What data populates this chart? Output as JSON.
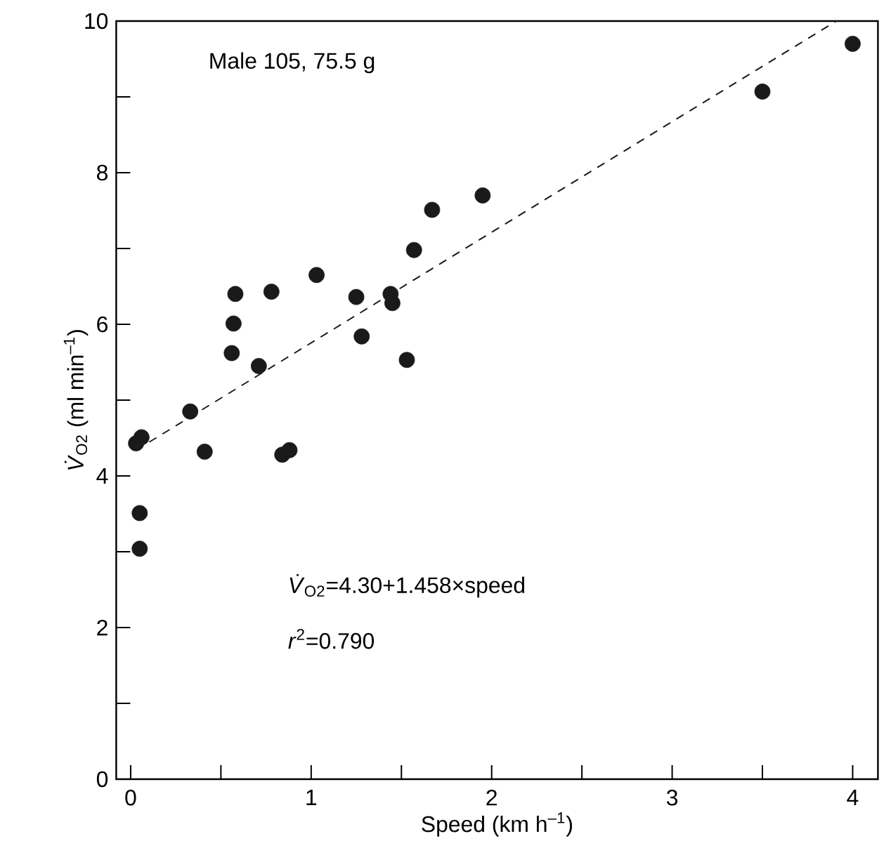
{
  "chart_data": {
    "type": "scatter",
    "xlabel": "Speed (km h$^{–1}$)",
    "ylabel": "*V̇*$_{O2}$ (ml min$^{–1}$)",
    "annotations": [
      "Male 105,  75.5 g",
      "*V̇*$_{O2}$=4.30+1.458×speed",
      "*r*$^{2}$=0.790"
    ],
    "xlim": [
      -0.08,
      4.14
    ],
    "ylim": [
      0,
      10
    ],
    "xticks": [
      0,
      {
        "value": 0.5,
        "label": null
      },
      1,
      {
        "value": 1.5,
        "label": null
      },
      2,
      {
        "value": 2.5,
        "label": null
      },
      3,
      {
        "value": 3.5,
        "label": null
      },
      4
    ],
    "yticks": [
      0,
      {
        "value": 1,
        "label": null
      },
      2,
      {
        "value": 3,
        "label": null
      },
      4,
      {
        "value": 5,
        "label": null
      },
      6,
      {
        "value": 7,
        "label": null
      },
      8,
      {
        "value": 9,
        "label": null
      },
      10
    ],
    "series": [
      {
        "color": "#1a1a1a",
        "marker": "circle",
        "x": [
          0.03,
          0.06,
          0.05,
          0.05,
          0.33,
          0.41,
          0.56,
          0.57,
          0.58,
          0.71,
          0.78,
          0.84,
          0.88,
          1.03,
          1.25,
          1.28,
          1.44,
          1.45,
          1.53,
          1.57,
          1.67,
          1.95,
          3.5,
          4.0
        ],
        "values": [
          4.43,
          4.51,
          3.51,
          3.04,
          4.85,
          4.32,
          5.62,
          6.01,
          6.4,
          5.45,
          6.43,
          4.28,
          4.34,
          6.65,
          6.36,
          5.84,
          6.4,
          6.28,
          5.53,
          6.98,
          7.51,
          7.7,
          9.07,
          9.7
        ]
      },
      {
        "type": "line",
        "color": "#1a1a1a",
        "line_style": "dashed",
        "marker": "none",
        "x": [
          0.03,
          3.91
        ],
        "values": [
          4.34,
          10.0
        ]
      }
    ]
  }
}
